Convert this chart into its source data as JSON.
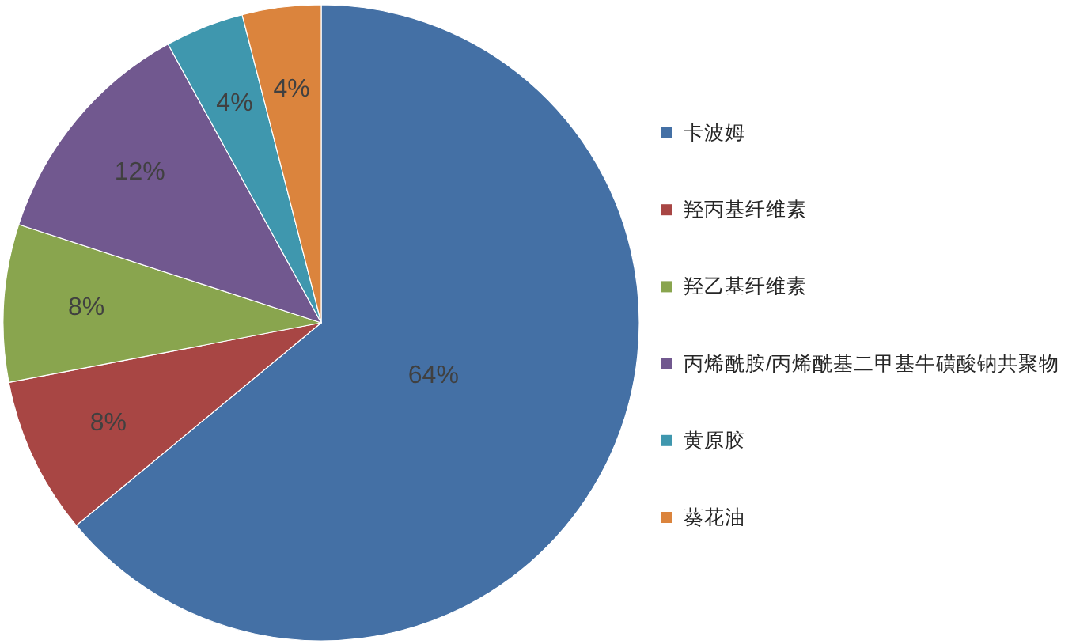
{
  "chart_data": {
    "type": "pie",
    "categories": [
      "卡波姆",
      "羟丙基纤维素",
      "羟乙基纤维素",
      "丙烯酰胺/丙烯酰基二甲基牛磺酸钠共聚物",
      "黄原胶",
      "葵花油"
    ],
    "values": [
      64,
      8,
      8,
      12,
      4,
      4
    ],
    "colors": [
      "#4470a5",
      "#a84644",
      "#89a54e",
      "#71588f",
      "#3f97ae",
      "#db843d"
    ],
    "value_labels": [
      "64%",
      "8%",
      "8%",
      "12%",
      "4%",
      "4%"
    ],
    "legend": "right"
  }
}
